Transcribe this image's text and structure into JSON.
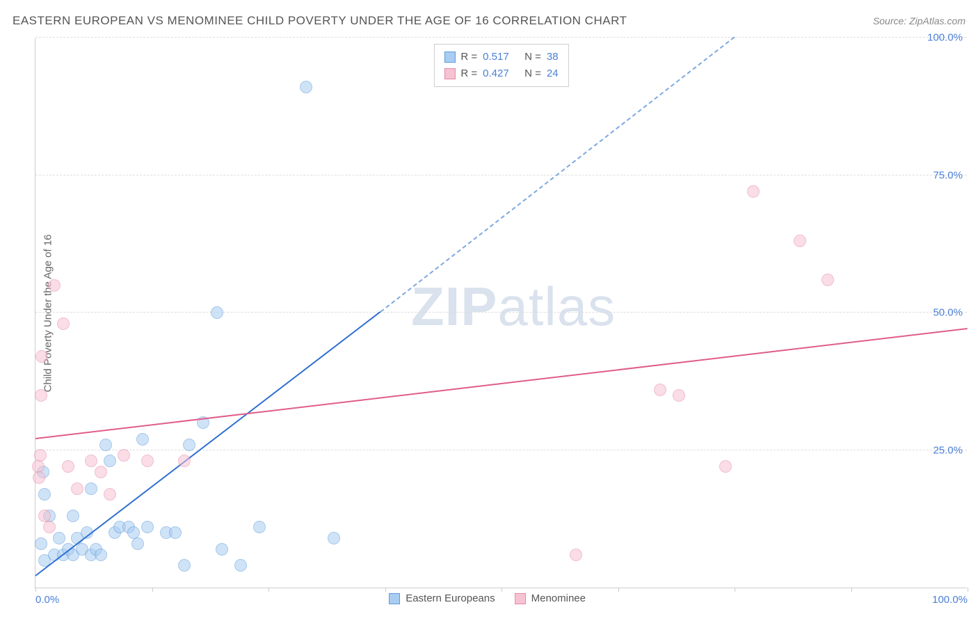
{
  "header": {
    "title": "EASTERN EUROPEAN VS MENOMINEE CHILD POVERTY UNDER THE AGE OF 16 CORRELATION CHART",
    "source_prefix": "Source: ",
    "source_name": "ZipAtlas.com"
  },
  "watermark": {
    "text_bold": "ZIP",
    "text_light": "atlas"
  },
  "chart": {
    "type": "scatter",
    "background_color": "#ffffff",
    "grid_color": "#dddddd",
    "axis_color": "#cccccc",
    "ylabel": "Child Poverty Under the Age of 16",
    "ylabel_color": "#666666",
    "xlim": [
      0,
      100
    ],
    "ylim": [
      0,
      100
    ],
    "yticks": [
      25,
      50,
      75,
      100
    ],
    "ytick_labels": [
      "25.0%",
      "50.0%",
      "75.0%",
      "100.0%"
    ],
    "ytick_color": "#4a7fd6",
    "xticks": [
      0,
      12.5,
      25,
      37.5,
      50,
      62.5,
      75,
      87.5,
      100
    ],
    "xtick_labels": {
      "0": "0.0%",
      "100": "100.0%"
    },
    "xtick_color": "#4a7fd6",
    "marker_radius": 9,
    "marker_opacity": 0.55,
    "series": [
      {
        "name": "Eastern Europeans",
        "fill": "#a9cdf2",
        "stroke": "#5d9adb",
        "trend_color": "#2e6fd1",
        "trend_dash_color": "#7da8e0",
        "R": 0.517,
        "N": 38,
        "trend": {
          "x1": 0,
          "y1": 2,
          "x2": 37,
          "y2": 50,
          "extend_to_x": 75,
          "extend_to_y": 100
        },
        "points": [
          [
            1,
            17
          ],
          [
            1.5,
            13
          ],
          [
            0.8,
            21
          ],
          [
            0.6,
            8
          ],
          [
            1,
            5
          ],
          [
            2,
            6
          ],
          [
            2.5,
            9
          ],
          [
            3,
            6
          ],
          [
            3.5,
            7
          ],
          [
            4,
            6
          ],
          [
            4.5,
            9
          ],
          [
            5,
            7
          ],
          [
            5.5,
            10
          ],
          [
            6,
            6
          ],
          [
            6.5,
            7
          ],
          [
            7,
            6
          ],
          [
            7.5,
            26
          ],
          [
            8,
            23
          ],
          [
            8.5,
            10
          ],
          [
            9,
            11
          ],
          [
            10,
            11
          ],
          [
            10.5,
            10
          ],
          [
            11,
            8
          ],
          [
            11.5,
            27
          ],
          [
            12,
            11
          ],
          [
            14,
            10
          ],
          [
            15,
            10
          ],
          [
            16,
            4
          ],
          [
            16.5,
            26
          ],
          [
            18,
            30
          ],
          [
            19.5,
            50
          ],
          [
            20,
            7
          ],
          [
            22,
            4
          ],
          [
            24,
            11
          ],
          [
            29,
            91
          ],
          [
            32,
            9
          ],
          [
            4,
            13
          ],
          [
            6,
            18
          ]
        ]
      },
      {
        "name": "Menominee",
        "fill": "#f7c2d2",
        "stroke": "#e68aa7",
        "trend_color": "#e05c8a",
        "R": 0.427,
        "N": 24,
        "trend": {
          "x1": 0,
          "y1": 27,
          "x2": 100,
          "y2": 47
        },
        "points": [
          [
            0.3,
            22
          ],
          [
            0.4,
            20
          ],
          [
            0.5,
            24
          ],
          [
            0.6,
            35
          ],
          [
            0.7,
            42
          ],
          [
            1,
            13
          ],
          [
            1.5,
            11
          ],
          [
            2,
            55
          ],
          [
            3,
            48
          ],
          [
            3.5,
            22
          ],
          [
            4.5,
            18
          ],
          [
            6,
            23
          ],
          [
            7,
            21
          ],
          [
            8,
            17
          ],
          [
            9.5,
            24
          ],
          [
            12,
            23
          ],
          [
            16,
            23
          ],
          [
            58,
            6
          ],
          [
            67,
            36
          ],
          [
            69,
            35
          ],
          [
            74,
            22
          ],
          [
            77,
            72
          ],
          [
            82,
            63
          ],
          [
            85,
            56
          ]
        ]
      }
    ],
    "legend_top": {
      "r_label": "R =",
      "n_label": "N =",
      "value_color": "#4a7fd6",
      "text_color": "#555555"
    },
    "legend_bottom": {
      "items": [
        "Eastern Europeans",
        "Menominee"
      ]
    }
  }
}
